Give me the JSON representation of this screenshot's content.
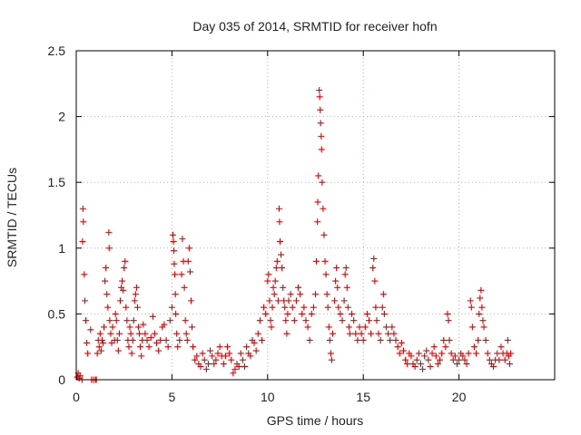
{
  "chart_data": {
    "type": "scatter",
    "title": "Day 035 of 2014, SRMTID for receiver hofn",
    "xlabel": "GPS time / hours",
    "ylabel": "SRMTID / TECUs",
    "xlim": [
      0,
      25
    ],
    "ylim": [
      0,
      2.5
    ],
    "x_ticks": [
      0,
      5,
      10,
      15,
      20
    ],
    "x_tick_labels": [
      "0",
      "5",
      "10",
      "15",
      "20"
    ],
    "y_ticks": [
      0,
      0.5,
      1,
      1.5,
      2,
      2.5
    ],
    "y_tick_labels": [
      "0",
      "0.5",
      "1",
      "1.5",
      "2",
      "2.5"
    ],
    "grid": true,
    "marker": "+",
    "color": "#e00000",
    "series": [
      {
        "name": "SRMTID",
        "points": [
          [
            0.05,
            0.02
          ],
          [
            0.1,
            0.05
          ],
          [
            0.15,
            0.01
          ],
          [
            0.2,
            0.03
          ],
          [
            0.3,
            0.0
          ],
          [
            0.35,
            1.3
          ],
          [
            0.37,
            1.2
          ],
          [
            0.33,
            1.05
          ],
          [
            0.42,
            0.8
          ],
          [
            0.45,
            0.6
          ],
          [
            0.5,
            0.45
          ],
          [
            0.55,
            0.28
          ],
          [
            0.6,
            0.2
          ],
          [
            0.75,
            0.38
          ],
          [
            0.8,
            0.0
          ],
          [
            0.9,
            0.0
          ],
          [
            1.0,
            0.0
          ],
          [
            1.05,
            0.0
          ],
          [
            1.1,
            0.2
          ],
          [
            1.15,
            0.3
          ],
          [
            1.2,
            0.25
          ],
          [
            1.25,
            0.35
          ],
          [
            1.3,
            0.22
          ],
          [
            1.35,
            0.3
          ],
          [
            1.4,
            0.28
          ],
          [
            1.45,
            0.4
          ],
          [
            1.5,
            0.75
          ],
          [
            1.55,
            0.85
          ],
          [
            1.6,
            0.65
          ],
          [
            1.65,
            0.55
          ],
          [
            1.7,
            1.12
          ],
          [
            1.72,
            1.0
          ],
          [
            1.75,
            0.45
          ],
          [
            1.8,
            0.35
          ],
          [
            1.85,
            0.28
          ],
          [
            1.9,
            0.4
          ],
          [
            2.0,
            0.3
          ],
          [
            2.05,
            0.5
          ],
          [
            2.1,
            0.45
          ],
          [
            2.15,
            0.3
          ],
          [
            2.2,
            0.22
          ],
          [
            2.25,
            0.35
          ],
          [
            2.3,
            0.6
          ],
          [
            2.35,
            0.7
          ],
          [
            2.4,
            0.75
          ],
          [
            2.45,
            0.68
          ],
          [
            2.5,
            0.85
          ],
          [
            2.55,
            0.9
          ],
          [
            2.6,
            0.55
          ],
          [
            2.65,
            0.45
          ],
          [
            2.7,
            0.3
          ],
          [
            2.75,
            0.25
          ],
          [
            2.8,
            0.4
          ],
          [
            2.85,
            0.35
          ],
          [
            2.9,
            0.2
          ],
          [
            2.95,
            0.3
          ],
          [
            3.0,
            0.45
          ],
          [
            3.05,
            0.6
          ],
          [
            3.1,
            0.65
          ],
          [
            3.15,
            0.7
          ],
          [
            3.2,
            0.55
          ],
          [
            3.25,
            0.4
          ],
          [
            3.3,
            0.35
          ],
          [
            3.35,
            0.25
          ],
          [
            3.4,
            0.18
          ],
          [
            3.45,
            0.3
          ],
          [
            3.5,
            0.42
          ],
          [
            3.6,
            0.35
          ],
          [
            3.7,
            0.3
          ],
          [
            3.8,
            0.25
          ],
          [
            3.9,
            0.32
          ],
          [
            4.0,
            0.48
          ],
          [
            4.1,
            0.35
          ],
          [
            4.2,
            0.28
          ],
          [
            4.3,
            0.22
          ],
          [
            4.4,
            0.3
          ],
          [
            4.5,
            0.4
          ],
          [
            4.6,
            0.42
          ],
          [
            4.7,
            0.3
          ],
          [
            4.8,
            0.25
          ],
          [
            4.9,
            0.45
          ],
          [
            5.0,
            0.55
          ],
          [
            5.05,
            1.1
          ],
          [
            5.08,
            1.05
          ],
          [
            5.1,
            0.98
          ],
          [
            5.12,
            0.88
          ],
          [
            5.15,
            0.8
          ],
          [
            5.18,
            0.65
          ],
          [
            5.2,
            0.5
          ],
          [
            5.25,
            0.35
          ],
          [
            5.3,
            0.25
          ],
          [
            5.4,
            0.3
          ],
          [
            5.5,
            0.8
          ],
          [
            5.55,
            1.07
          ],
          [
            5.6,
            0.9
          ],
          [
            5.65,
            0.7
          ],
          [
            5.7,
            0.45
          ],
          [
            5.75,
            0.35
          ],
          [
            5.8,
            0.3
          ],
          [
            5.85,
            0.9
          ],
          [
            5.9,
            1.0
          ],
          [
            5.95,
            0.82
          ],
          [
            6.0,
            0.6
          ],
          [
            6.05,
            0.4
          ],
          [
            6.1,
            0.25
          ],
          [
            6.2,
            0.15
          ],
          [
            6.3,
            0.18
          ],
          [
            6.4,
            0.12
          ],
          [
            6.5,
            0.1
          ],
          [
            6.6,
            0.2
          ],
          [
            6.7,
            0.15
          ],
          [
            6.8,
            0.08
          ],
          [
            6.9,
            0.12
          ],
          [
            7.0,
            0.22
          ],
          [
            7.1,
            0.18
          ],
          [
            7.2,
            0.12
          ],
          [
            7.3,
            0.15
          ],
          [
            7.4,
            0.2
          ],
          [
            7.5,
            0.25
          ],
          [
            7.6,
            0.18
          ],
          [
            7.7,
            0.12
          ],
          [
            7.8,
            0.18
          ],
          [
            7.9,
            0.25
          ],
          [
            8.0,
            0.2
          ],
          [
            8.1,
            0.15
          ],
          [
            8.2,
            0.05
          ],
          [
            8.3,
            0.08
          ],
          [
            8.4,
            0.12
          ],
          [
            8.5,
            0.1
          ],
          [
            8.6,
            0.2
          ],
          [
            8.7,
            0.15
          ],
          [
            8.8,
            0.1
          ],
          [
            8.9,
            0.25
          ],
          [
            9.0,
            0.2
          ],
          [
            9.1,
            0.18
          ],
          [
            9.2,
            0.3
          ],
          [
            9.3,
            0.28
          ],
          [
            9.4,
            0.22
          ],
          [
            9.5,
            0.35
          ],
          [
            9.6,
            0.45
          ],
          [
            9.7,
            0.3
          ],
          [
            9.8,
            0.55
          ],
          [
            9.9,
            0.5
          ],
          [
            10.0,
            0.75
          ],
          [
            10.05,
            0.8
          ],
          [
            10.1,
            0.6
          ],
          [
            10.15,
            0.45
          ],
          [
            10.2,
            0.4
          ],
          [
            10.25,
            0.55
          ],
          [
            10.3,
            0.7
          ],
          [
            10.35,
            0.65
          ],
          [
            10.4,
            0.75
          ],
          [
            10.45,
            0.85
          ],
          [
            10.5,
            0.9
          ],
          [
            10.55,
            0.6
          ],
          [
            10.6,
            1.3
          ],
          [
            10.62,
            1.2
          ],
          [
            10.65,
            1.05
          ],
          [
            10.7,
            0.95
          ],
          [
            10.75,
            0.85
          ],
          [
            10.8,
            0.7
          ],
          [
            10.85,
            0.6
          ],
          [
            10.9,
            0.55
          ],
          [
            10.95,
            0.45
          ],
          [
            11.0,
            0.35
          ],
          [
            11.05,
            0.5
          ],
          [
            11.1,
            0.6
          ],
          [
            11.2,
            0.65
          ],
          [
            11.3,
            0.55
          ],
          [
            11.4,
            0.45
          ],
          [
            11.5,
            0.6
          ],
          [
            11.6,
            0.7
          ],
          [
            11.7,
            0.65
          ],
          [
            11.8,
            0.5
          ],
          [
            11.9,
            0.55
          ],
          [
            12.0,
            0.45
          ],
          [
            12.1,
            0.4
          ],
          [
            12.2,
            0.3
          ],
          [
            12.3,
            0.5
          ],
          [
            12.4,
            0.55
          ],
          [
            12.5,
            0.65
          ],
          [
            12.55,
            0.9
          ],
          [
            12.6,
            1.2
          ],
          [
            12.62,
            1.35
          ],
          [
            12.65,
            1.55
          ],
          [
            12.7,
            2.2
          ],
          [
            12.72,
            2.15
          ],
          [
            12.75,
            2.05
          ],
          [
            12.77,
            1.95
          ],
          [
            12.8,
            1.85
          ],
          [
            12.82,
            1.75
          ],
          [
            12.85,
            1.5
          ],
          [
            12.9,
            1.3
          ],
          [
            12.95,
            1.1
          ],
          [
            13.0,
            0.9
          ],
          [
            13.05,
            0.8
          ],
          [
            13.1,
            0.65
          ],
          [
            13.15,
            0.55
          ],
          [
            13.2,
            0.4
          ],
          [
            13.25,
            0.3
          ],
          [
            13.3,
            0.2
          ],
          [
            13.35,
            0.15
          ],
          [
            13.4,
            0.35
          ],
          [
            13.5,
            0.6
          ],
          [
            13.55,
            0.75
          ],
          [
            13.6,
            0.85
          ],
          [
            13.65,
            0.7
          ],
          [
            13.7,
            0.55
          ],
          [
            13.8,
            0.5
          ],
          [
            13.9,
            0.45
          ],
          [
            14.0,
            0.6
          ],
          [
            14.05,
            0.8
          ],
          [
            14.1,
            0.85
          ],
          [
            14.15,
            0.7
          ],
          [
            14.2,
            0.55
          ],
          [
            14.25,
            0.4
          ],
          [
            14.3,
            0.35
          ],
          [
            14.4,
            0.5
          ],
          [
            14.5,
            0.45
          ],
          [
            14.6,
            0.35
          ],
          [
            14.7,
            0.3
          ],
          [
            14.8,
            0.4
          ],
          [
            14.9,
            0.35
          ],
          [
            15.0,
            0.3
          ],
          [
            15.1,
            0.4
          ],
          [
            15.2,
            0.5
          ],
          [
            15.3,
            0.45
          ],
          [
            15.4,
            0.35
          ],
          [
            15.5,
            0.85
          ],
          [
            15.55,
            0.92
          ],
          [
            15.6,
            0.75
          ],
          [
            15.65,
            0.55
          ],
          [
            15.7,
            0.45
          ],
          [
            15.8,
            0.35
          ],
          [
            15.9,
            0.3
          ],
          [
            16.0,
            0.55
          ],
          [
            16.05,
            0.65
          ],
          [
            16.1,
            0.5
          ],
          [
            16.2,
            0.4
          ],
          [
            16.3,
            0.35
          ],
          [
            16.4,
            0.3
          ],
          [
            16.5,
            0.4
          ],
          [
            16.6,
            0.35
          ],
          [
            16.7,
            0.3
          ],
          [
            16.8,
            0.25
          ],
          [
            16.9,
            0.2
          ],
          [
            17.0,
            0.28
          ],
          [
            17.1,
            0.22
          ],
          [
            17.2,
            0.15
          ],
          [
            17.3,
            0.12
          ],
          [
            17.4,
            0.2
          ],
          [
            17.5,
            0.18
          ],
          [
            17.6,
            0.12
          ],
          [
            17.7,
            0.1
          ],
          [
            17.8,
            0.15
          ],
          [
            17.9,
            0.2
          ],
          [
            18.0,
            0.12
          ],
          [
            18.1,
            0.08
          ],
          [
            18.2,
            0.18
          ],
          [
            18.3,
            0.22
          ],
          [
            18.4,
            0.15
          ],
          [
            18.5,
            0.1
          ],
          [
            18.6,
            0.2
          ],
          [
            18.7,
            0.25
          ],
          [
            18.8,
            0.18
          ],
          [
            18.9,
            0.12
          ],
          [
            19.0,
            0.15
          ],
          [
            19.1,
            0.2
          ],
          [
            19.2,
            0.3
          ],
          [
            19.3,
            0.25
          ],
          [
            19.4,
            0.5
          ],
          [
            19.45,
            0.45
          ],
          [
            19.5,
            0.3
          ],
          [
            19.6,
            0.2
          ],
          [
            19.7,
            0.15
          ],
          [
            19.8,
            0.18
          ],
          [
            19.9,
            0.12
          ],
          [
            20.0,
            0.15
          ],
          [
            20.1,
            0.2
          ],
          [
            20.2,
            0.18
          ],
          [
            20.3,
            0.15
          ],
          [
            20.4,
            0.12
          ],
          [
            20.5,
            0.2
          ],
          [
            20.6,
            0.6
          ],
          [
            20.65,
            0.55
          ],
          [
            20.7,
            0.4
          ],
          [
            20.8,
            0.25
          ],
          [
            20.9,
            0.2
          ],
          [
            21.0,
            0.3
          ],
          [
            21.05,
            0.5
          ],
          [
            21.1,
            0.62
          ],
          [
            21.15,
            0.68
          ],
          [
            21.2,
            0.55
          ],
          [
            21.25,
            0.45
          ],
          [
            21.3,
            0.4
          ],
          [
            21.4,
            0.3
          ],
          [
            21.5,
            0.2
          ],
          [
            21.6,
            0.15
          ],
          [
            21.7,
            0.12
          ],
          [
            21.8,
            0.1
          ],
          [
            21.9,
            0.15
          ],
          [
            22.0,
            0.2
          ],
          [
            22.1,
            0.15
          ],
          [
            22.2,
            0.25
          ],
          [
            22.3,
            0.2
          ],
          [
            22.4,
            0.15
          ],
          [
            22.5,
            0.2
          ],
          [
            22.55,
            0.3
          ],
          [
            22.6,
            0.18
          ],
          [
            22.65,
            0.12
          ],
          [
            22.7,
            0.2
          ]
        ]
      }
    ]
  }
}
